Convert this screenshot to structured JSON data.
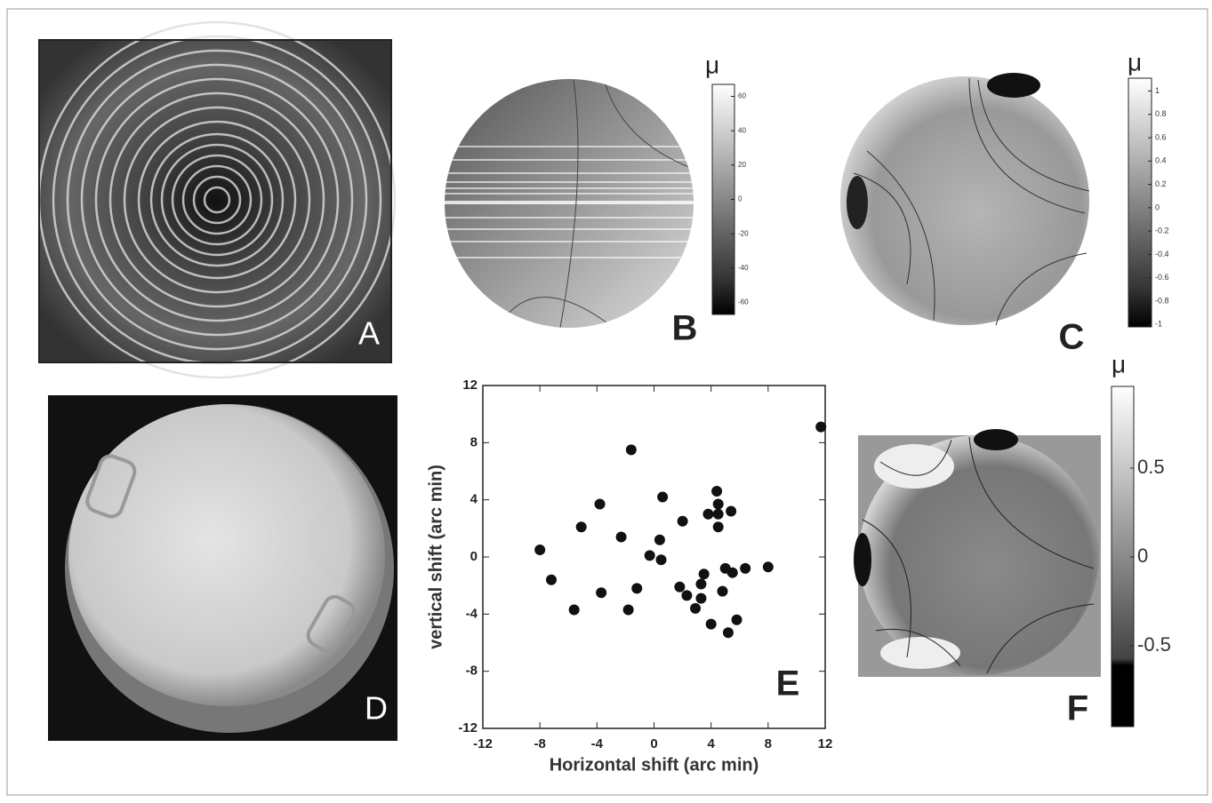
{
  "image_panels": [
    {
      "label": "A"
    },
    {
      "label": "D"
    }
  ],
  "chart_data": [
    {
      "type": "scatter",
      "panel_label": "E",
      "x_label": "Horizontal shift (arc min)",
      "y_label": "vertical shift (arc min)",
      "x": [
        -8.0,
        -7.2,
        -5.1,
        -5.6,
        -3.8,
        -3.7,
        -2.3,
        -1.6,
        -1.8,
        -1.2,
        -0.3,
        0.6,
        0.4,
        0.5,
        2.0,
        1.8,
        2.3,
        2.9,
        3.3,
        3.5,
        3.3,
        3.8,
        4.0,
        4.4,
        4.5,
        4.5,
        4.5,
        4.8,
        5.0,
        5.4,
        5.2,
        5.5,
        5.8,
        6.4,
        8.0,
        11.7
      ],
      "values": [
        0.5,
        -1.6,
        2.1,
        -3.7,
        3.7,
        -2.5,
        1.4,
        7.5,
        -3.7,
        -2.2,
        0.1,
        4.2,
        1.2,
        -0.2,
        2.5,
        -2.1,
        -2.7,
        -3.6,
        -1.9,
        -1.2,
        -2.9,
        3.0,
        -4.7,
        4.6,
        3.7,
        3.0,
        2.1,
        -2.4,
        -0.8,
        3.2,
        -5.3,
        -1.1,
        -4.4,
        -0.8,
        -0.7,
        9.1
      ],
      "color": "#111111",
      "xlim": [
        -12,
        12
      ],
      "xticks": [
        -12,
        -8,
        -4,
        0,
        4,
        8,
        12
      ],
      "ylim": [
        -12,
        12
      ],
      "yticks": [
        -12,
        -8,
        -4,
        0,
        4,
        8,
        12
      ]
    },
    {
      "type": "colorbar",
      "panel_label": "B",
      "title": "μ",
      "ylim": [
        -67,
        67
      ],
      "yticks": [
        60,
        40,
        20,
        0,
        -20,
        -40,
        -60
      ]
    },
    {
      "type": "colorbar",
      "panel_label": "C",
      "title": "μ",
      "ylim": [
        -1.02,
        1.11
      ],
      "yticks": [
        1,
        0.8,
        0.6,
        0.4,
        0.2,
        0,
        -0.2,
        -0.4,
        -0.6,
        -0.8,
        -1
      ]
    },
    {
      "type": "colorbar",
      "panel_label": "F",
      "title": "μ",
      "ylim": [
        -0.955,
        0.96
      ],
      "yticks": [
        0.5,
        0,
        -0.5
      ]
    }
  ]
}
